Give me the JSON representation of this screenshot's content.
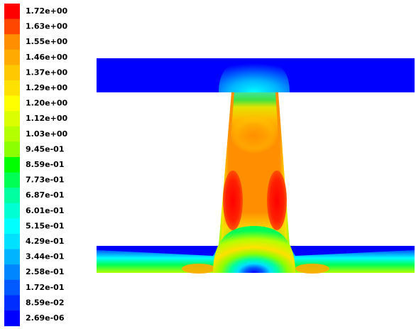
{
  "legend": {
    "labels": [
      "1.72e+00",
      "1.63e+00",
      "1.55e+00",
      "1.46e+00",
      "1.37e+00",
      "1.29e+00",
      "1.20e+00",
      "1.12e+00",
      "1.03e+00",
      "9.45e-01",
      "8.59e-01",
      "7.73e-01",
      "6.87e-01",
      "6.01e-01",
      "5.15e-01",
      "4.29e-01",
      "3.44e-01",
      "2.58e-01",
      "1.72e-01",
      "8.59e-02",
      "2.69e-06"
    ],
    "colors": [
      "#ff0000",
      "#ff4700",
      "#ff8e00",
      "#ffaa00",
      "#ffc800",
      "#ffe100",
      "#ffff00",
      "#dcff00",
      "#b4ff00",
      "#8cff00",
      "#00ff00",
      "#00ff55",
      "#00ffa0",
      "#00ffd2",
      "#00ffff",
      "#00e1ff",
      "#00b4ff",
      "#0087ff",
      "#005aff",
      "#002dff",
      "#0000ff"
    ]
  }
}
